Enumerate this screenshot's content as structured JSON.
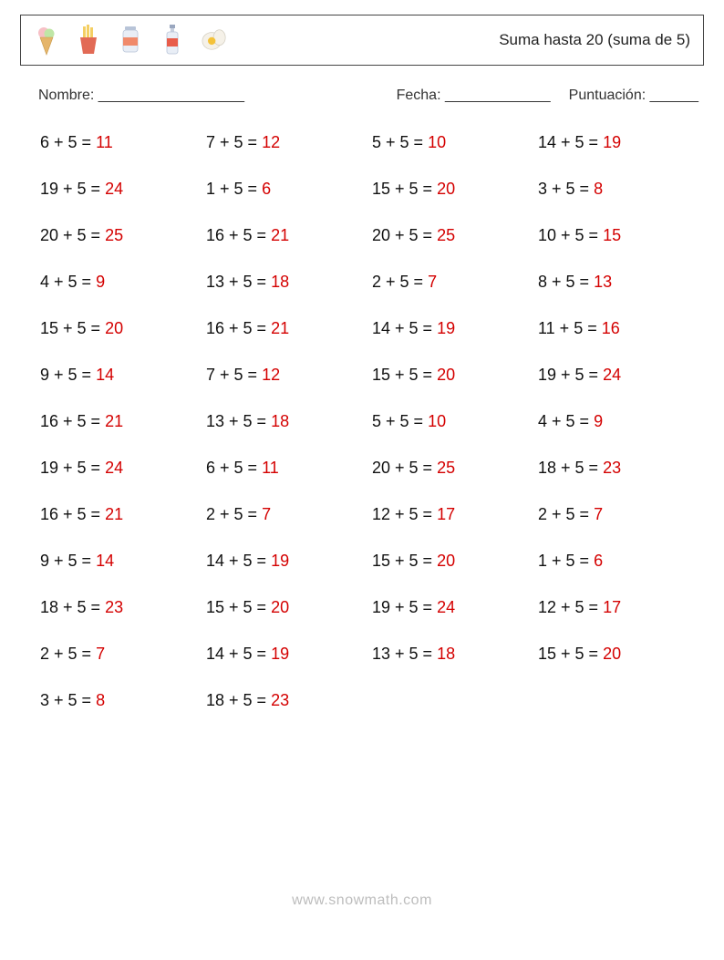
{
  "header": {
    "title": "Suma hasta 20 (suma de 5)",
    "icons": [
      "icecream",
      "fries",
      "jar",
      "bottle",
      "egg"
    ],
    "icon_colors": {
      "cone": "#e5b56a",
      "scoop1": "#f7c0c6",
      "scoop2": "#bfe6a6",
      "fries_box": "#e26a55",
      "fries": "#f4cf63",
      "jar_body": "#e9eef6",
      "jar_label": "#f08a6b",
      "jar_lid": "#b8c4d8",
      "bottle_body": "#e9eef6",
      "bottle_label": "#e85c4a",
      "bottle_lid": "#9aa7bf",
      "egg_white": "#f5f1e8",
      "egg_yolk": "#f4c23a"
    }
  },
  "meta": {
    "name_label": "Nombre: __________________",
    "date_label": "Fecha: _____________",
    "score_label": "Puntuación: ______"
  },
  "style": {
    "answer_color": "#d40000",
    "text_color": "#111111",
    "font_size_problem": 18,
    "row_gap": 30,
    "columns": 4
  },
  "problems": [
    {
      "a": 6,
      "b": 5,
      "ans": 11
    },
    {
      "a": 7,
      "b": 5,
      "ans": 12
    },
    {
      "a": 5,
      "b": 5,
      "ans": 10
    },
    {
      "a": 14,
      "b": 5,
      "ans": 19
    },
    {
      "a": 19,
      "b": 5,
      "ans": 24
    },
    {
      "a": 1,
      "b": 5,
      "ans": 6
    },
    {
      "a": 15,
      "b": 5,
      "ans": 20
    },
    {
      "a": 3,
      "b": 5,
      "ans": 8
    },
    {
      "a": 20,
      "b": 5,
      "ans": 25
    },
    {
      "a": 16,
      "b": 5,
      "ans": 21
    },
    {
      "a": 20,
      "b": 5,
      "ans": 25
    },
    {
      "a": 10,
      "b": 5,
      "ans": 15
    },
    {
      "a": 4,
      "b": 5,
      "ans": 9
    },
    {
      "a": 13,
      "b": 5,
      "ans": 18
    },
    {
      "a": 2,
      "b": 5,
      "ans": 7
    },
    {
      "a": 8,
      "b": 5,
      "ans": 13
    },
    {
      "a": 15,
      "b": 5,
      "ans": 20
    },
    {
      "a": 16,
      "b": 5,
      "ans": 21
    },
    {
      "a": 14,
      "b": 5,
      "ans": 19
    },
    {
      "a": 11,
      "b": 5,
      "ans": 16
    },
    {
      "a": 9,
      "b": 5,
      "ans": 14
    },
    {
      "a": 7,
      "b": 5,
      "ans": 12
    },
    {
      "a": 15,
      "b": 5,
      "ans": 20
    },
    {
      "a": 19,
      "b": 5,
      "ans": 24
    },
    {
      "a": 16,
      "b": 5,
      "ans": 21
    },
    {
      "a": 13,
      "b": 5,
      "ans": 18
    },
    {
      "a": 5,
      "b": 5,
      "ans": 10
    },
    {
      "a": 4,
      "b": 5,
      "ans": 9
    },
    {
      "a": 19,
      "b": 5,
      "ans": 24
    },
    {
      "a": 6,
      "b": 5,
      "ans": 11
    },
    {
      "a": 20,
      "b": 5,
      "ans": 25
    },
    {
      "a": 18,
      "b": 5,
      "ans": 23
    },
    {
      "a": 16,
      "b": 5,
      "ans": 21
    },
    {
      "a": 2,
      "b": 5,
      "ans": 7
    },
    {
      "a": 12,
      "b": 5,
      "ans": 17
    },
    {
      "a": 2,
      "b": 5,
      "ans": 7
    },
    {
      "a": 9,
      "b": 5,
      "ans": 14
    },
    {
      "a": 14,
      "b": 5,
      "ans": 19
    },
    {
      "a": 15,
      "b": 5,
      "ans": 20
    },
    {
      "a": 1,
      "b": 5,
      "ans": 6
    },
    {
      "a": 18,
      "b": 5,
      "ans": 23
    },
    {
      "a": 15,
      "b": 5,
      "ans": 20
    },
    {
      "a": 19,
      "b": 5,
      "ans": 24
    },
    {
      "a": 12,
      "b": 5,
      "ans": 17
    },
    {
      "a": 2,
      "b": 5,
      "ans": 7
    },
    {
      "a": 14,
      "b": 5,
      "ans": 19
    },
    {
      "a": 13,
      "b": 5,
      "ans": 18
    },
    {
      "a": 15,
      "b": 5,
      "ans": 20
    },
    {
      "a": 3,
      "b": 5,
      "ans": 8
    },
    {
      "a": 18,
      "b": 5,
      "ans": 23
    }
  ],
  "footer": {
    "url": "www.snowmath.com"
  }
}
